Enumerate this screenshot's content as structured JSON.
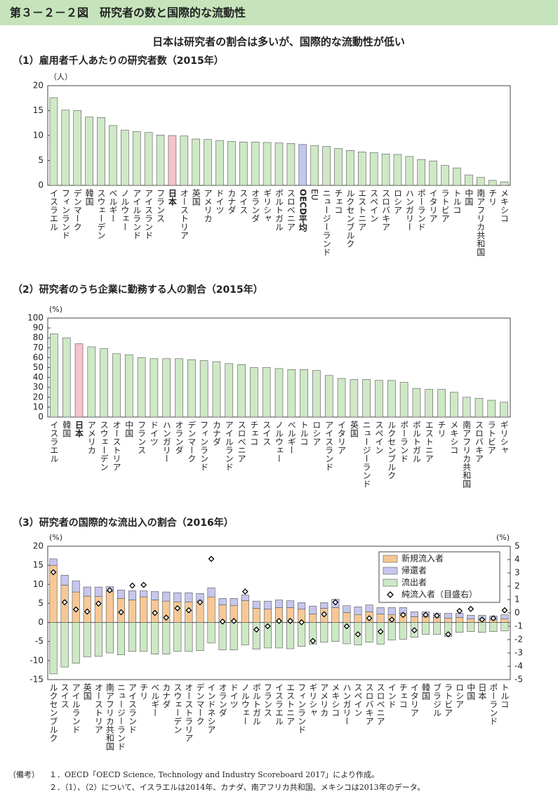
{
  "header": {
    "title": "第３－２－２図　研究者の数と国際的な流動性",
    "subtitle": "日本は研究者の割合は多いが、国際的な流動性が低い"
  },
  "notes": {
    "label": "（備考）",
    "items": [
      "１．OECD「OECD Science, Technology and Industry Scoreboard 2017」により作成。",
      "２．（1）、（2）について、イスラエルは2014年、カナダ、南アフリカ共和国、メキシコは2013年のデータ。"
    ]
  },
  "chart_data": [
    {
      "type": "bar",
      "title": "（1）雇用者千人あたりの研究者数（2015年）",
      "y_unit": "（人）",
      "categories": [
        "イスラエル",
        "フィンランド",
        "デンマーク",
        "韓国",
        "スウェーデン",
        "ベルギー",
        "ノルウェー",
        "アイルランド",
        "アイスランド",
        "フランス",
        "日本",
        "オーストリア",
        "英国",
        "アメリカ",
        "ドイツ",
        "カナダ",
        "スイス",
        "オランダ",
        "ギリシャ",
        "ポルトガル",
        "スロベニア",
        "OECD平均",
        "EU",
        "ニュージーランド",
        "チェコ",
        "ルクセンブルク",
        "エストニア",
        "スペイン",
        "スロバキア",
        "ロシア",
        "ハンガリー",
        "ポーランド",
        "イタリア",
        "ラトビア",
        "トルコ",
        "中国",
        "南アフリカ共和国",
        "チリ",
        "メキシコ"
      ],
      "values": [
        17.6,
        15.1,
        15.0,
        13.7,
        13.6,
        12.0,
        11.1,
        10.8,
        10.6,
        10.1,
        10.0,
        9.9,
        9.3,
        9.2,
        9.0,
        8.8,
        8.7,
        8.7,
        8.6,
        8.5,
        8.4,
        8.2,
        8.0,
        7.8,
        7.4,
        7.0,
        6.7,
        6.6,
        6.3,
        6.2,
        5.8,
        5.2,
        4.9,
        4.0,
        3.5,
        2.1,
        1.6,
        1.0,
        0.7
      ],
      "color": "#cfe8c6",
      "colors": [
        "#cfe8c6",
        "#cfe8c6",
        "#cfe8c6",
        "#cfe8c6",
        "#cfe8c6",
        "#cfe8c6",
        "#cfe8c6",
        "#cfe8c6",
        "#cfe8c6",
        "#cfe8c6",
        "#f7c2cc",
        "#cfe8c6",
        "#cfe8c6",
        "#cfe8c6",
        "#cfe8c6",
        "#cfe8c6",
        "#cfe8c6",
        "#cfe8c6",
        "#cfe8c6",
        "#cfe8c6",
        "#cfe8c6",
        "#c3c6ee",
        "#cfe8c6",
        "#cfe8c6",
        "#cfe8c6",
        "#cfe8c6",
        "#cfe8c6",
        "#cfe8c6",
        "#cfe8c6",
        "#cfe8c6",
        "#cfe8c6",
        "#cfe8c6",
        "#cfe8c6",
        "#cfe8c6",
        "#cfe8c6",
        "#cfe8c6",
        "#cfe8c6",
        "#cfe8c6",
        "#cfe8c6"
      ],
      "ylim": [
        0,
        20
      ],
      "yticks": [
        0,
        5,
        10,
        15,
        20
      ]
    },
    {
      "type": "bar",
      "title": "（2）研究者のうち企業に勤務する人の割合（2015年）",
      "y_unit": "(%)",
      "categories": [
        "イスラエル",
        "韓国",
        "日本",
        "アメリカ",
        "スウェーデン",
        "オーストリア",
        "中国",
        "フランス",
        "ドイツ",
        "ハンガリー",
        "オランダ",
        "デンマーク",
        "フィンランド",
        "カナダ",
        "アイルランド",
        "スロベニア",
        "チェコ",
        "スイス",
        "ノルウェー",
        "ベルギー",
        "トルコ",
        "ロシア",
        "アイスランド",
        "イタリア",
        "英国",
        "ニュージーランド",
        "スペイン",
        "ルクセンブルク",
        "ポーランド",
        "ポルトガル",
        "エストニア",
        "チリ",
        "メキシコ",
        "南アフリカ共和国",
        "スロバキア",
        "ラトビア",
        "ギリシャ"
      ],
      "values": [
        84,
        80,
        74,
        71,
        69,
        64,
        63,
        60,
        59,
        59,
        59,
        58,
        57,
        56,
        54,
        53,
        50,
        50,
        49,
        48,
        48,
        47,
        42,
        39,
        38,
        38,
        37,
        37,
        35,
        29,
        28,
        28,
        25,
        20,
        19,
        17,
        15
      ],
      "color": "#cfe8c6",
      "colors": [
        "#cfe8c6",
        "#cfe8c6",
        "#f7c2cc",
        "#cfe8c6",
        "#cfe8c6",
        "#cfe8c6",
        "#cfe8c6",
        "#cfe8c6",
        "#cfe8c6",
        "#cfe8c6",
        "#cfe8c6",
        "#cfe8c6",
        "#cfe8c6",
        "#cfe8c6",
        "#cfe8c6",
        "#cfe8c6",
        "#cfe8c6",
        "#cfe8c6",
        "#cfe8c6",
        "#cfe8c6",
        "#cfe8c6",
        "#cfe8c6",
        "#cfe8c6",
        "#cfe8c6",
        "#cfe8c6",
        "#cfe8c6",
        "#cfe8c6",
        "#cfe8c6",
        "#cfe8c6",
        "#cfe8c6",
        "#cfe8c6",
        "#cfe8c6",
        "#cfe8c6",
        "#cfe8c6",
        "#cfe8c6",
        "#cfe8c6",
        "#cfe8c6"
      ],
      "ylim": [
        0,
        100
      ],
      "yticks": [
        0,
        10,
        20,
        30,
        40,
        50,
        60,
        70,
        80,
        90,
        100
      ]
    },
    {
      "type": "bar",
      "title": "（3）研究者の国際的な流出入の割合（2016年）",
      "y_unit": "(%)",
      "y2_unit": "(%)",
      "legend": "top-right",
      "categories": [
        "ルクセンブルク",
        "スイス",
        "アイルランド",
        "英国",
        "オーストリア",
        "南アフリカ共和国",
        "ニュージーランド",
        "アイスランド",
        "チリ",
        "ベルギー",
        "カナダ",
        "スウェーデン",
        "オーストラリア",
        "デンマーク",
        "インドネシア",
        "オランダ",
        "ドイツ",
        "ノルウェー",
        "ポルトガル",
        "フランス",
        "イスラエル",
        "エストニア",
        "フィンランド",
        "ギリシャ",
        "アメリカ",
        "メキシコ",
        "ハンガリー",
        "スペイン",
        "スロバキア",
        "スロベニア",
        "インド",
        "チェコ",
        "イタリア",
        "韓国",
        "ブラジル",
        "ラトビア",
        "ロシア",
        "中国",
        "日本",
        "ポーランド",
        "トルコ"
      ],
      "series": [
        {
          "name": "新規流入者",
          "color": "#f7c896",
          "values": [
            15,
            9.8,
            8,
            6.9,
            6.8,
            8.1,
            6.3,
            5.9,
            6.7,
            5.9,
            5.6,
            5.4,
            5.4,
            5.6,
            6.7,
            4.6,
            4.4,
            5.7,
            3.7,
            3.5,
            3.9,
            3.9,
            3.5,
            2.2,
            3.7,
            3.9,
            2.6,
            2.0,
            2.8,
            2.2,
            2.0,
            2.4,
            1.5,
            1.5,
            1.3,
            1.1,
            1.3,
            0.9,
            0.9,
            0.7,
            0.9
          ]
        },
        {
          "name": "帰還者",
          "color": "#c6c6ee",
          "values": [
            1.7,
            2.6,
            2.9,
            2.4,
            2.5,
            1.3,
            2.2,
            2.4,
            1.6,
            2.2,
            2.4,
            2.4,
            2.4,
            2.0,
            2.4,
            1.7,
            1.9,
            1.5,
            1.9,
            2.1,
            2.0,
            1.8,
            1.7,
            2.1,
            1.5,
            2.2,
            1.8,
            2.1,
            1.8,
            1.7,
            1.9,
            1.5,
            1.3,
            1.3,
            1.1,
            1.3,
            1.1,
            1.0,
            1.0,
            1.0,
            1.1
          ]
        },
        {
          "name": "流出者",
          "color": "#cde8c5",
          "values": [
            -13.5,
            -11.7,
            -10.7,
            -9,
            -8.9,
            -8,
            -8.5,
            -7.6,
            -7.6,
            -8.3,
            -8.3,
            -7.6,
            -7.6,
            -7.4,
            -5.4,
            -7.2,
            -7.2,
            -5.9,
            -7.0,
            -6.7,
            -6.7,
            -6.9,
            -6.3,
            -5.7,
            -5.2,
            -5.0,
            -5.6,
            -5.9,
            -5.2,
            -5.7,
            -4.6,
            -4.4,
            -3.9,
            -3.1,
            -3.1,
            -3.7,
            -2.6,
            -2.4,
            -2.6,
            -2.4,
            -2.2
          ]
        },
        {
          "name": "純流入者（目盛右）",
          "color": "#000000",
          "axis": "y2",
          "values": [
            3.05,
            0.8,
            0.26,
            0.1,
            0.7,
            1.7,
            0.05,
            2.05,
            2.1,
            0,
            -0.35,
            0.35,
            0.2,
            0.8,
            4.05,
            -0.65,
            -0.6,
            1.6,
            -1.25,
            -1,
            -0.6,
            -0.6,
            -0.7,
            -2.1,
            -0.1,
            0.8,
            -1,
            -1.6,
            -0.4,
            -1.4,
            -0.5,
            -0.15,
            -1.3,
            -0.15,
            -0.2,
            -1.6,
            0.15,
            0.3,
            -0.5,
            -0.4,
            0.2
          ]
        }
      ],
      "ylim": [
        -15,
        20
      ],
      "yticks": [
        -15,
        -10,
        -5,
        0,
        5,
        10,
        15,
        20
      ],
      "y2lim": [
        -5,
        5
      ],
      "y2ticks": [
        -5,
        -4,
        -3,
        -2,
        -1,
        0,
        1,
        2,
        3,
        4,
        5
      ]
    }
  ]
}
